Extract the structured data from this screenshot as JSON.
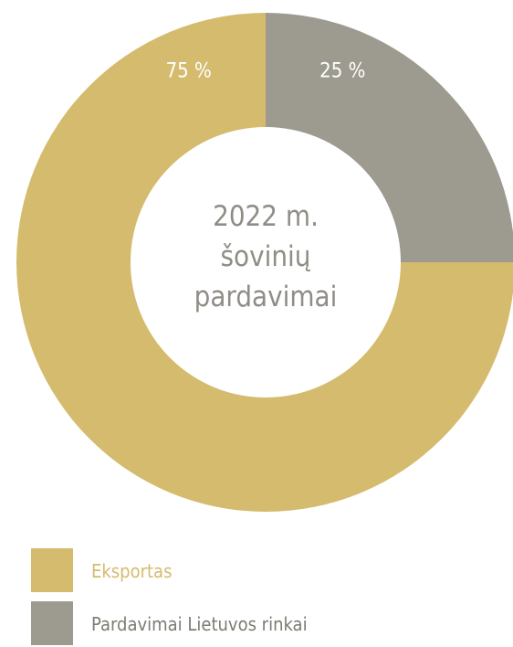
{
  "chart_data": {
    "type": "pie",
    "title": "2022 m. šovinių pardavimai",
    "categories": [
      "Eksportas",
      "Pardavimai Lietuvos rinkai"
    ],
    "values": [
      75,
      25
    ],
    "value_labels": [
      "75 %",
      "25 %"
    ],
    "colors": [
      "#d4bb6e",
      "#9d9b90"
    ]
  }
}
